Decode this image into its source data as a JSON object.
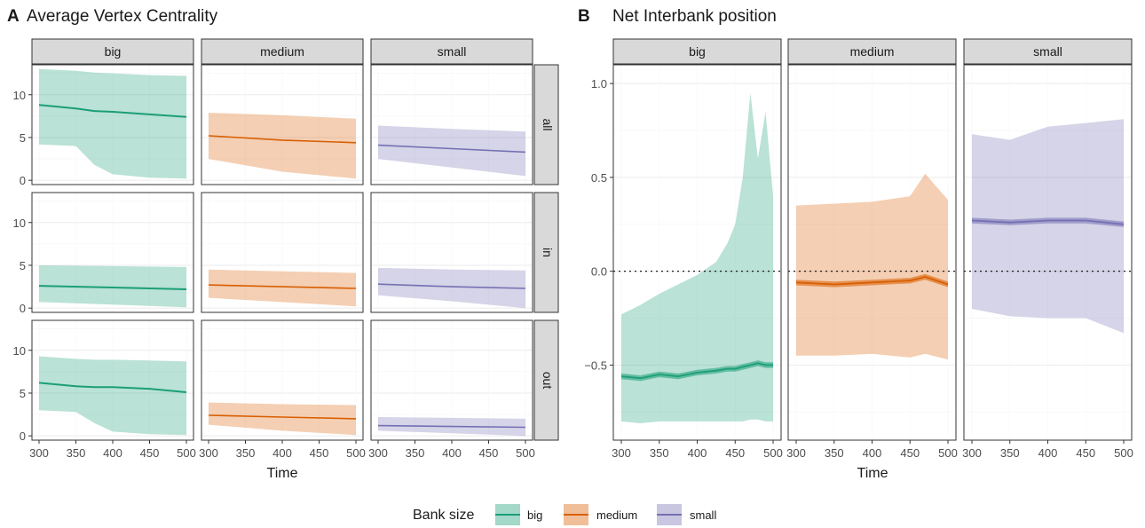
{
  "panelA": {
    "tag": "A",
    "title": "Average Vertex Centrality",
    "xlabel": "Time",
    "col_strips": [
      "big",
      "medium",
      "small"
    ],
    "row_strips": [
      "all",
      "in",
      "out"
    ],
    "x_ticks": [
      "300",
      "350",
      "400",
      "450",
      "500"
    ],
    "y_ticks": [
      "0",
      "5",
      "10"
    ]
  },
  "panelB": {
    "tag": "B",
    "title": "Net Interbank position",
    "xlabel": "Time",
    "col_strips": [
      "big",
      "medium",
      "small"
    ],
    "x_ticks": [
      "300",
      "350",
      "400",
      "450",
      "500"
    ],
    "y_ticks": [
      "−0.5",
      "0.0",
      "0.5",
      "1.0"
    ]
  },
  "legend": {
    "title": "Bank size",
    "items": [
      "big",
      "medium",
      "small"
    ]
  },
  "colors": {
    "big": "#1b9e77",
    "medium": "#d95f02",
    "small": "#7570b3",
    "strip_bg": "#d9d9d9",
    "grid": "#ebebeb"
  },
  "chart_data": [
    {
      "type": "area",
      "title": "Average Vertex Centrality",
      "xlabel": "Time",
      "ylabel": "",
      "xlim": [
        300,
        500
      ],
      "ylim": [
        -0.5,
        13.5
      ],
      "facets": [
        {
          "row": "all",
          "col": "big",
          "x": [
            300,
            350,
            375,
            400,
            450,
            500
          ],
          "mean": [
            8.8,
            8.4,
            8.1,
            8.0,
            7.7,
            7.4
          ],
          "lower": [
            4.2,
            4.0,
            1.8,
            0.7,
            0.3,
            0.2
          ],
          "upper": [
            13.0,
            12.8,
            12.6,
            12.5,
            12.3,
            12.2
          ]
        },
        {
          "row": "all",
          "col": "medium",
          "x": [
            300,
            400,
            500
          ],
          "mean": [
            5.2,
            4.7,
            4.4
          ],
          "lower": [
            2.5,
            1.0,
            0.2
          ],
          "upper": [
            7.9,
            7.6,
            7.2
          ]
        },
        {
          "row": "all",
          "col": "small",
          "x": [
            300,
            400,
            500
          ],
          "mean": [
            4.1,
            3.7,
            3.3
          ],
          "lower": [
            2.5,
            1.5,
            0.5
          ],
          "upper": [
            6.4,
            6.0,
            5.7
          ]
        },
        {
          "row": "in",
          "col": "big",
          "x": [
            300,
            400,
            500
          ],
          "mean": [
            2.6,
            2.4,
            2.2
          ],
          "lower": [
            0.7,
            0.4,
            0.1
          ],
          "upper": [
            5.0,
            4.9,
            4.8
          ]
        },
        {
          "row": "in",
          "col": "medium",
          "x": [
            300,
            400,
            500
          ],
          "mean": [
            2.7,
            2.5,
            2.3
          ],
          "lower": [
            1.2,
            0.7,
            0.2
          ],
          "upper": [
            4.5,
            4.3,
            4.1
          ]
        },
        {
          "row": "in",
          "col": "small",
          "x": [
            300,
            400,
            500
          ],
          "mean": [
            2.8,
            2.5,
            2.3
          ],
          "lower": [
            1.5,
            0.8,
            0.0
          ],
          "upper": [
            4.7,
            4.5,
            4.4
          ]
        },
        {
          "row": "out",
          "col": "big",
          "x": [
            300,
            350,
            375,
            400,
            450,
            500
          ],
          "mean": [
            6.2,
            5.8,
            5.7,
            5.7,
            5.5,
            5.1
          ],
          "lower": [
            3.0,
            2.8,
            1.5,
            0.5,
            0.2,
            0.1
          ],
          "upper": [
            9.3,
            9.0,
            8.9,
            8.9,
            8.8,
            8.7
          ]
        },
        {
          "row": "out",
          "col": "medium",
          "x": [
            300,
            400,
            500
          ],
          "mean": [
            2.4,
            2.2,
            2.0
          ],
          "lower": [
            1.3,
            0.6,
            0.1
          ],
          "upper": [
            3.9,
            3.7,
            3.6
          ]
        },
        {
          "row": "out",
          "col": "small",
          "x": [
            300,
            400,
            500
          ],
          "mean": [
            1.2,
            1.1,
            1.0
          ],
          "lower": [
            0.6,
            0.3,
            0.0
          ],
          "upper": [
            2.2,
            2.1,
            2.0
          ]
        }
      ]
    },
    {
      "type": "area",
      "title": "Net Interbank position",
      "xlabel": "Time",
      "ylabel": "",
      "xlim": [
        300,
        500
      ],
      "ylim": [
        -0.9,
        1.1
      ],
      "reference_line": 0.0,
      "facets": [
        {
          "col": "big",
          "x": [
            300,
            325,
            350,
            375,
            400,
            425,
            440,
            450,
            460,
            470,
            480,
            490,
            500
          ],
          "mean": [
            -0.56,
            -0.57,
            -0.55,
            -0.56,
            -0.54,
            -0.53,
            -0.52,
            -0.52,
            -0.51,
            -0.5,
            -0.49,
            -0.5,
            -0.5
          ],
          "lower": [
            -0.8,
            -0.81,
            -0.8,
            -0.8,
            -0.8,
            -0.8,
            -0.8,
            -0.8,
            -0.8,
            -0.79,
            -0.79,
            -0.8,
            -0.8
          ],
          "upper": [
            -0.23,
            -0.18,
            -0.12,
            -0.07,
            -0.02,
            0.05,
            0.15,
            0.25,
            0.5,
            0.95,
            0.6,
            0.85,
            0.4
          ]
        },
        {
          "col": "medium",
          "x": [
            300,
            350,
            400,
            450,
            470,
            500
          ],
          "mean": [
            -0.06,
            -0.07,
            -0.06,
            -0.05,
            -0.03,
            -0.07
          ],
          "lower": [
            -0.45,
            -0.45,
            -0.44,
            -0.46,
            -0.44,
            -0.47
          ],
          "upper": [
            0.35,
            0.36,
            0.37,
            0.4,
            0.52,
            0.38
          ]
        },
        {
          "col": "small",
          "x": [
            300,
            350,
            400,
            450,
            500
          ],
          "mean": [
            0.27,
            0.26,
            0.27,
            0.27,
            0.25
          ],
          "lower": [
            -0.2,
            -0.24,
            -0.25,
            -0.25,
            -0.33
          ],
          "upper": [
            0.73,
            0.7,
            0.77,
            0.79,
            0.81
          ]
        }
      ]
    }
  ]
}
